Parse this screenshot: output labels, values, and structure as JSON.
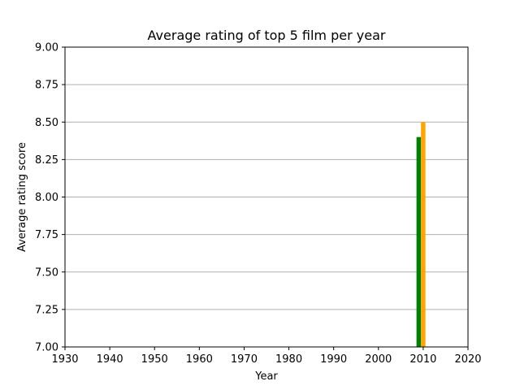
{
  "chart_data": {
    "type": "bar",
    "title": "Average rating of top 5 film per year",
    "xlabel": "Year",
    "ylabel": "Average rating score",
    "xlim": [
      1930,
      2020
    ],
    "ylim": [
      7.0,
      9.0
    ],
    "x_ticks": [
      "1930",
      "1940",
      "1950",
      "1960",
      "1970",
      "1980",
      "1990",
      "2000",
      "2010",
      "2020"
    ],
    "y_ticks": [
      "7.00",
      "7.25",
      "7.50",
      "7.75",
      "8.00",
      "8.25",
      "8.50",
      "8.75",
      "9.00"
    ],
    "grid": "horizontal",
    "bars": [
      {
        "x": 2009,
        "value": 8.4,
        "color": "#008000"
      },
      {
        "x": 2010,
        "value": 8.5,
        "color": "#ffa500"
      }
    ]
  }
}
